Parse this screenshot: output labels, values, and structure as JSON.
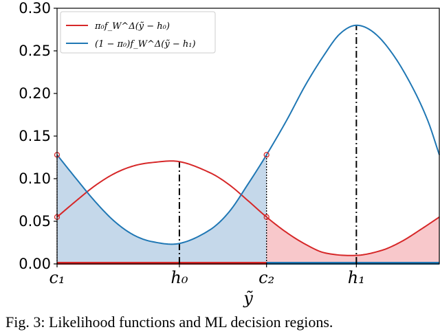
{
  "chart_data": {
    "type": "line",
    "x_range": [
      0,
      1
    ],
    "ylim": [
      0,
      0.3
    ],
    "yticks": [
      "0.00",
      "0.05",
      "0.10",
      "0.15",
      "0.20",
      "0.25",
      "0.30"
    ],
    "ytick_values": [
      0,
      0.05,
      0.1,
      0.15,
      0.2,
      0.25,
      0.3
    ],
    "xticks": [
      {
        "label": "c₁",
        "x": 0.0
      },
      {
        "label": "h₀",
        "x": 0.32
      },
      {
        "label": "c₂",
        "x": 0.548
      },
      {
        "label": "h₁",
        "x": 0.783
      }
    ],
    "xlabel": "ỹ",
    "legend_position": "top-left",
    "series": [
      {
        "name": "π₀f_W^Δ(ỹ − h₀)",
        "color": "#d62728",
        "points": [
          [
            0.0,
            0.055
          ],
          [
            0.05,
            0.074
          ],
          [
            0.1,
            0.092
          ],
          [
            0.15,
            0.106
          ],
          [
            0.2,
            0.115
          ],
          [
            0.25,
            0.119
          ],
          [
            0.32,
            0.12
          ],
          [
            0.4,
            0.107
          ],
          [
            0.45,
            0.093
          ],
          [
            0.5,
            0.074
          ],
          [
            0.548,
            0.055
          ],
          [
            0.6,
            0.037
          ],
          [
            0.65,
            0.023
          ],
          [
            0.7,
            0.013
          ],
          [
            0.783,
            0.01
          ],
          [
            0.85,
            0.016
          ],
          [
            0.9,
            0.026
          ],
          [
            0.95,
            0.04
          ],
          [
            1.0,
            0.055
          ]
        ]
      },
      {
        "name": "(1 − π₀)f_W^Δ(ỹ − h₁)",
        "color": "#1f77b4",
        "points": [
          [
            0.0,
            0.128
          ],
          [
            0.05,
            0.1
          ],
          [
            0.1,
            0.073
          ],
          [
            0.15,
            0.05
          ],
          [
            0.2,
            0.034
          ],
          [
            0.25,
            0.026
          ],
          [
            0.32,
            0.024
          ],
          [
            0.4,
            0.04
          ],
          [
            0.45,
            0.061
          ],
          [
            0.5,
            0.094
          ],
          [
            0.548,
            0.128
          ],
          [
            0.6,
            0.168
          ],
          [
            0.65,
            0.21
          ],
          [
            0.7,
            0.246
          ],
          [
            0.74,
            0.27
          ],
          [
            0.783,
            0.28
          ],
          [
            0.83,
            0.271
          ],
          [
            0.88,
            0.245
          ],
          [
            0.93,
            0.207
          ],
          [
            0.97,
            0.168
          ],
          [
            1.0,
            0.128
          ]
        ]
      }
    ],
    "markers": [
      {
        "x": 0.0,
        "y": 0.128
      },
      {
        "x": 0.0,
        "y": 0.055
      },
      {
        "x": 0.548,
        "y": 0.128
      },
      {
        "x": 0.548,
        "y": 0.055
      }
    ],
    "regions": [
      {
        "from": 0.0,
        "to": 0.548,
        "color": "#d62728",
        "fill": "#c5d8ea",
        "follows": "(1 − π₀)f_W^Δ(ỹ − h₁)"
      },
      {
        "from": 0.548,
        "to": 1.0,
        "color": "#1f77b4",
        "fill": "#f8c8cb",
        "follows": "π₀f_W^Δ(ỹ − h₀)"
      }
    ]
  },
  "caption": "Fig. 3: Likelihood functions and ML decision regions."
}
